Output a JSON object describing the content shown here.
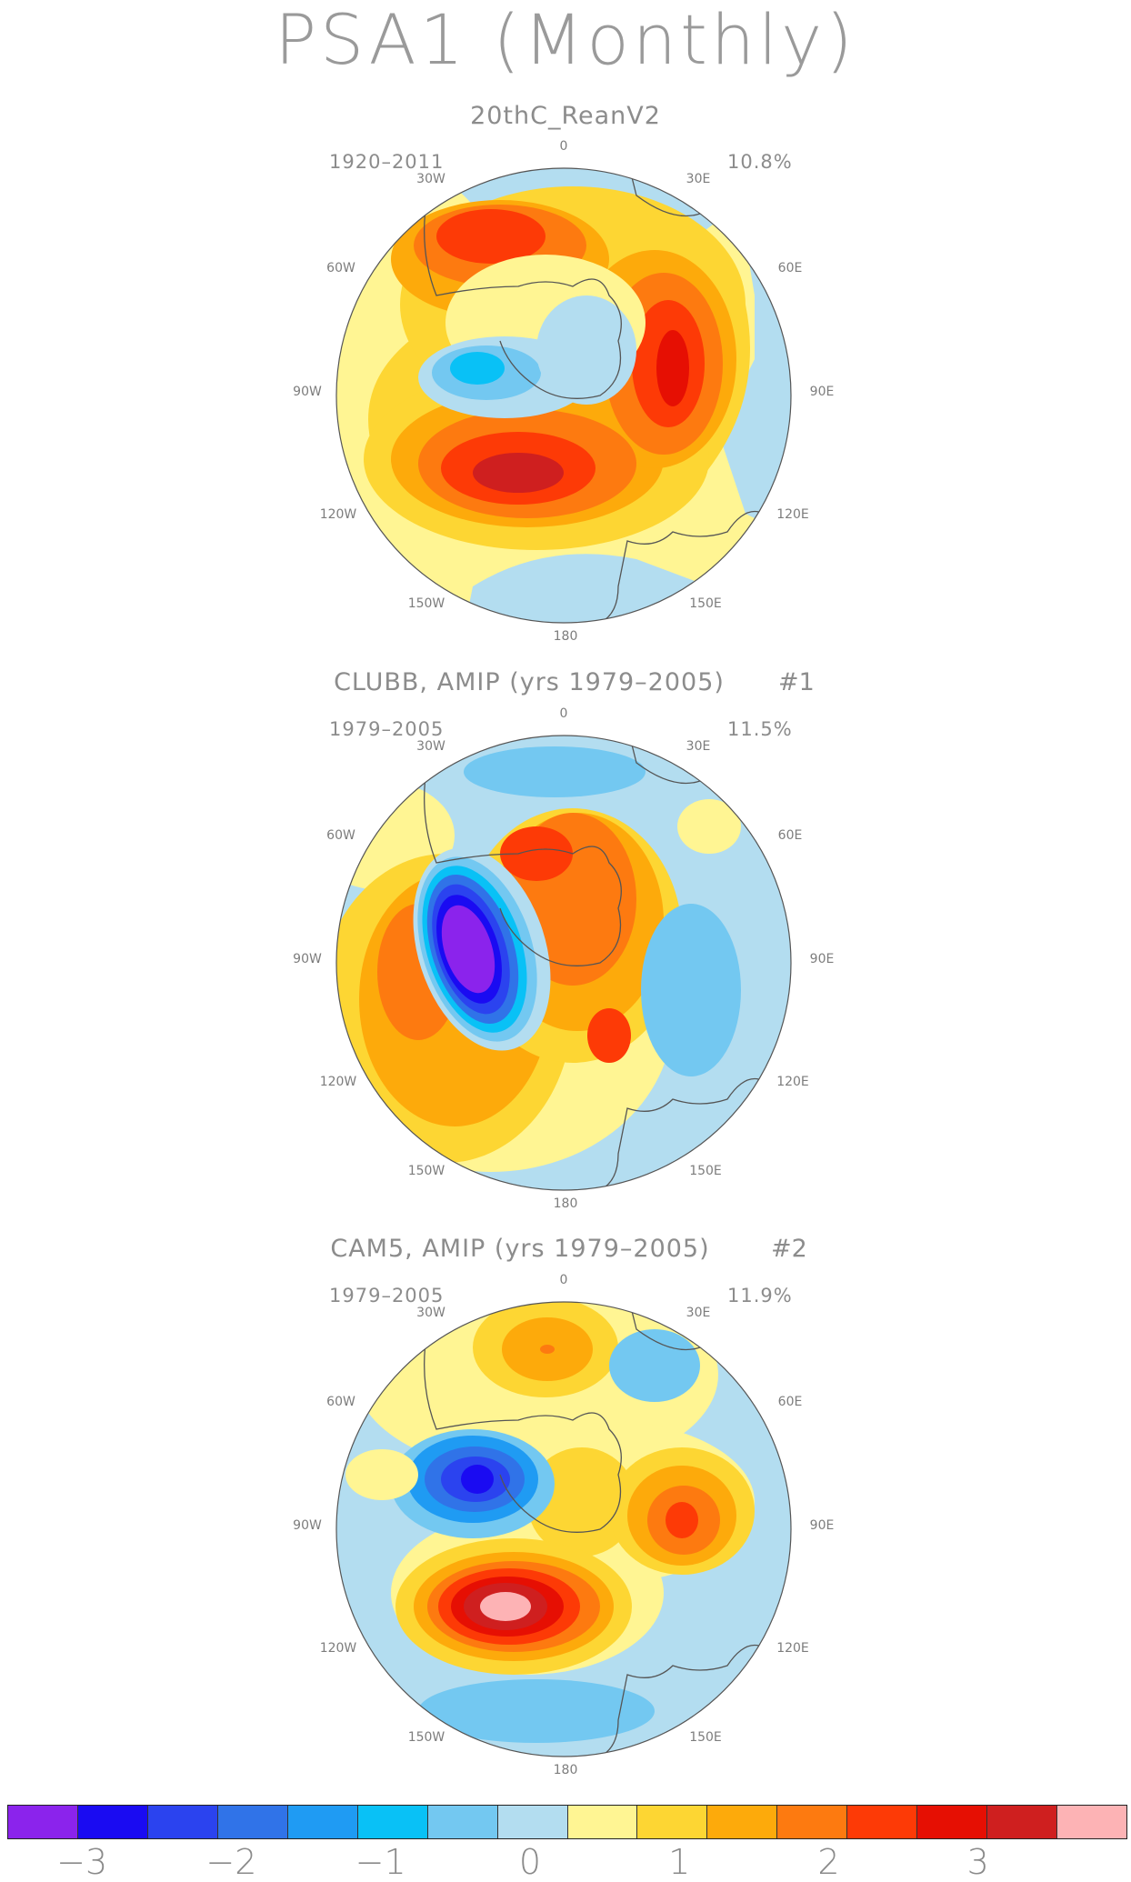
{
  "title": "PSA1 (Monthly)",
  "panels": [
    {
      "name": "20thC_ReanV2",
      "number": "",
      "period": "1920–2011",
      "variance": "10.8%"
    },
    {
      "name": "CLUBB, AMIP (yrs 1979–2005)",
      "number": "#1",
      "period": "1979–2005",
      "variance": "11.5%"
    },
    {
      "name": "CAM5, AMIP (yrs 1979–2005)",
      "number": "#2",
      "period": "1979–2005",
      "variance": "11.9%"
    }
  ],
  "longitude_labels": [
    "0",
    "30E",
    "60E",
    "90E",
    "120E",
    "150E",
    "180",
    "150W",
    "120W",
    "90W",
    "60W",
    "30W"
  ],
  "colorbar": {
    "colors": [
      "#8b23ec",
      "#1a0bf2",
      "#2b43ef",
      "#3073e8",
      "#1f9bf3",
      "#09c1f6",
      "#73c8f1",
      "#b3ddf0",
      "#fff593",
      "#fdd633",
      "#fdaa0b",
      "#fd7a10",
      "#fd3a06",
      "#e60f03",
      "#cf1f1f",
      "#fdb3b5"
    ],
    "tick_labels": [
      "−3",
      "−2",
      "−1",
      "0",
      "1",
      "2",
      "3"
    ],
    "tick_values": [
      -3,
      -2,
      -1,
      0,
      1,
      2,
      3
    ],
    "min": -3.5,
    "max": 4.0
  }
}
